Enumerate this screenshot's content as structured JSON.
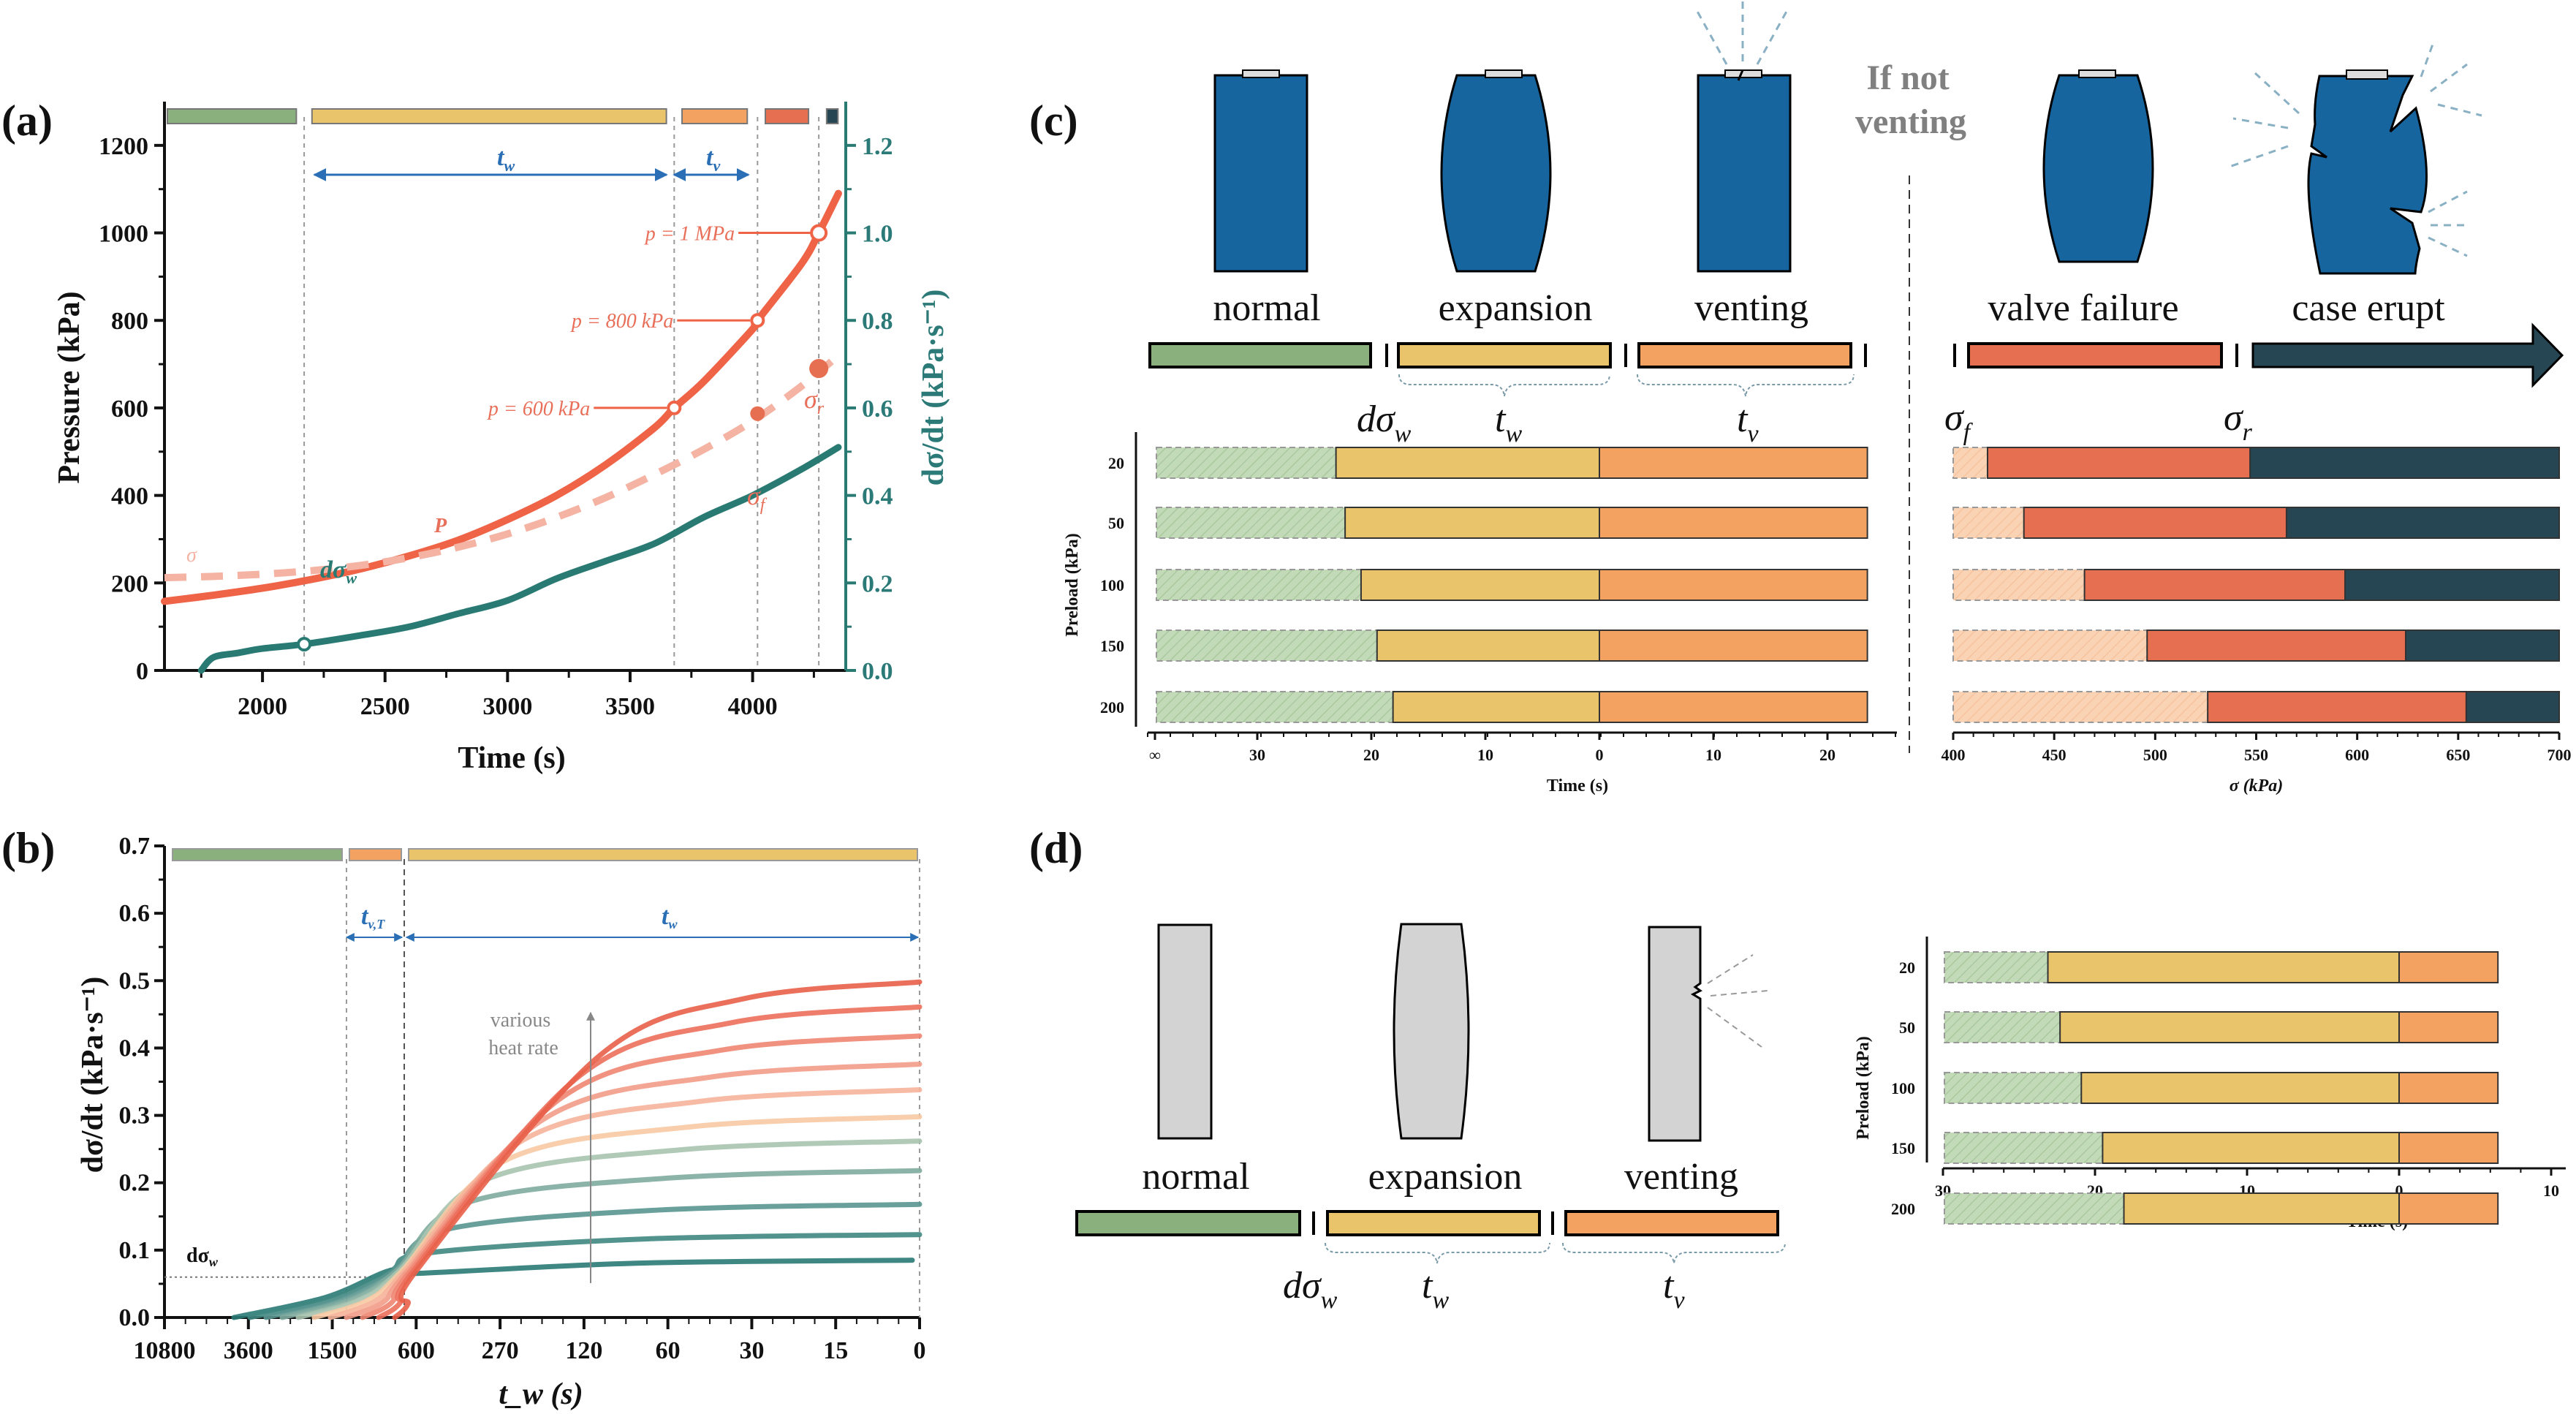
{
  "figure": {
    "panels": [
      "(a)",
      "(b)",
      "(c)",
      "(d)"
    ]
  },
  "colors": {
    "normal": "#8ab17d",
    "expansion": "#e9c46a",
    "venting": "#f4a261",
    "valve_failure": "#e76f51",
    "case_erupt": "#264653",
    "pressure": "#ef6347",
    "sigma": "#f4b3a3",
    "dsigma": "#2a7a74",
    "arrow_blue": "#2a6fb5",
    "battery_blue": "#17659f",
    "battery_gray": "#d3d3d3"
  },
  "panel_c": {
    "stages": [
      "normal",
      "expansion",
      "venting",
      "valve failure",
      "case erupt"
    ],
    "if_not_venting": [
      "If not",
      "venting"
    ],
    "symbols": {
      "dsigma_w": "dσ",
      "dsigma_w_sub": "w",
      "t_w": "t",
      "t_w_sub": "w",
      "t_v": "t",
      "t_v_sub": "v",
      "sigma_f": "σ",
      "sigma_f_sub": "f",
      "sigma_r": "σ",
      "sigma_r_sub": "r"
    }
  },
  "panel_d": {
    "stages": [
      "normal",
      "expansion",
      "venting"
    ],
    "symbols": {
      "dsigma_w": "dσ",
      "dsigma_w_sub": "w",
      "t_w": "t",
      "t_w_sub": "w",
      "t_v": "t",
      "t_v_sub": "v"
    }
  },
  "chart_data": [
    {
      "id": "a",
      "type": "line",
      "title": "",
      "xlabel": "Time (s)",
      "ylabel": "Pressure (kPa)",
      "ylabel_right": "dσ/dt (kPa·s⁻¹)",
      "xlim": [
        1600,
        4380
      ],
      "ylim": [
        0,
        1300
      ],
      "ylim_right": [
        0,
        1.3
      ],
      "xticks": [
        2000,
        2500,
        3000,
        3500,
        4000
      ],
      "yticks": [
        0,
        200,
        400,
        600,
        800,
        1000,
        1200
      ],
      "yticks_right": [
        "0.0",
        "0.2",
        "0.4",
        "0.6",
        "0.8",
        "1.0",
        "1.2"
      ],
      "series": [
        {
          "name": "P",
          "axis": "left",
          "style": "solid",
          "x": [
            1600,
            1800,
            2000,
            2200,
            2400,
            2600,
            2800,
            3000,
            3200,
            3400,
            3600,
            3680,
            3800,
            4000,
            4020,
            4200,
            4270,
            4350
          ],
          "y": [
            158,
            172,
            188,
            208,
            232,
            262,
            298,
            345,
            400,
            470,
            555,
            600,
            660,
            780,
            800,
            930,
            1000,
            1090
          ]
        },
        {
          "name": "σ",
          "axis": "left",
          "style": "dashed",
          "x": [
            1600,
            1800,
            2000,
            2200,
            2400,
            2600,
            2800,
            3000,
            3200,
            3400,
            3600,
            3800,
            4000,
            4200,
            4350
          ],
          "y": [
            212,
            215,
            220,
            228,
            240,
            258,
            282,
            312,
            350,
            395,
            448,
            505,
            570,
            650,
            720
          ]
        },
        {
          "name": "dσ/dt",
          "axis": "right",
          "style": "solid",
          "x": [
            1750,
            1800,
            1900,
            2000,
            2170,
            2400,
            2600,
            2800,
            3000,
            3200,
            3400,
            3600,
            3800,
            4000,
            4200,
            4350
          ],
          "y": [
            0.0,
            0.03,
            0.04,
            0.05,
            0.06,
            0.08,
            0.1,
            0.13,
            0.16,
            0.21,
            0.25,
            0.29,
            0.35,
            0.4,
            0.46,
            0.51
          ]
        }
      ],
      "markers": [
        {
          "label": "p = 600 kPa",
          "x": 3680,
          "y": 600,
          "type": "open"
        },
        {
          "label": "p = 800 kPa",
          "x": 4020,
          "y": 800,
          "type": "open"
        },
        {
          "label": "p = 1 MPa",
          "x": 4270,
          "y": 1000,
          "type": "open"
        },
        {
          "label": "σf",
          "x": 4020,
          "y": 587,
          "type": "filled"
        },
        {
          "label": "σr",
          "x": 4270,
          "y": 690,
          "type": "filled"
        },
        {
          "label": "dσw",
          "x": 2170,
          "y": 0.06,
          "type": "open",
          "axis": "right"
        }
      ],
      "annotations": {
        "P": "P",
        "sigma": "σ",
        "dsigma_w": "dσ",
        "dsigma_w_sub": "w",
        "t_w": "t",
        "t_w_sub": "w",
        "t_v": "t",
        "t_v_sub": "v",
        "sigma_f": "σ",
        "sigma_f_sub": "f",
        "sigma_r": "σ",
        "sigma_r_sub": "r"
      },
      "phase_boundaries": [
        2170,
        3680,
        4020,
        4270
      ],
      "phases": [
        {
          "name": "normal",
          "from": 1600,
          "to": 2150
        },
        {
          "name": "expansion",
          "from": 2190,
          "to": 3660
        },
        {
          "name": "venting",
          "from": 3700,
          "to": 3990
        },
        {
          "name": "valve failure",
          "from": 4040,
          "to": 4240
        },
        {
          "name": "case erupt",
          "from": 4290,
          "to": 4360
        }
      ]
    },
    {
      "id": "b",
      "type": "line",
      "title": "",
      "xlabel": "t_w (s)",
      "ylabel": "dσ/dt (kPa·s⁻¹)",
      "xticks": [
        "10800",
        "3600",
        "1500",
        "600",
        "270",
        "120",
        "60",
        "30",
        "15",
        "0"
      ],
      "ylim": [
        0,
        0.7
      ],
      "yticks": [
        "0.0",
        "0.1",
        "0.2",
        "0.3",
        "0.4",
        "0.5",
        "0.6",
        "0.7"
      ],
      "threshold": {
        "label": "dσ",
        "label_sub": "w",
        "value": 0.06
      },
      "annotation": [
        "various",
        "heat rate"
      ],
      "spans": {
        "t_vT": "t",
        "t_vT_sub": "v,T",
        "t_w": "t",
        "t_w_sub": "w"
      },
      "phases": [
        "normal",
        "venting",
        "expansion"
      ],
      "series_final_values": [
        0.085,
        0.123,
        0.168,
        0.218,
        0.262,
        0.298,
        0.338,
        0.376,
        0.418,
        0.461,
        0.498
      ],
      "series_colors": [
        "#2a7a74",
        "#3f8781",
        "#5a9690",
        "#7fab9f",
        "#a9c4b0",
        "#f7c9a3",
        "#f6b39a",
        "#f29c88",
        "#ef8673",
        "#ec6f5c",
        "#e8604a"
      ]
    },
    {
      "id": "c-left",
      "type": "bar",
      "orientation": "horizontal",
      "stacked": true,
      "xlabel": "Time (s)",
      "ylabel": "Preload (kPa)",
      "categories": [
        "20",
        "50",
        "100",
        "150",
        "200"
      ],
      "xticks": [
        "∞",
        "30",
        "20",
        "10",
        "0",
        "10",
        "20"
      ],
      "series": [
        {
          "name": "normal (hatched, to ∞)",
          "values": [
            "∞",
            "∞",
            "∞",
            "∞",
            "∞"
          ]
        },
        {
          "name": "t_w (expansion)",
          "values": [
            23.1,
            22.3,
            20.9,
            19.5,
            18.1
          ]
        },
        {
          "name": "t_v (venting)",
          "values": [
            23.5,
            23.5,
            23.5,
            23.5,
            23.5
          ]
        }
      ]
    },
    {
      "id": "c-right",
      "type": "bar",
      "orientation": "horizontal",
      "stacked": true,
      "xlabel": "σ (kPa)",
      "categories": [
        "20",
        "50",
        "100",
        "150",
        "200"
      ],
      "xlim": [
        400,
        700
      ],
      "xticks": [
        "400",
        "450",
        "500",
        "550",
        "600",
        "650",
        "700"
      ],
      "series": [
        {
          "name": "σ_f",
          "values": [
            417,
            435,
            465,
            496,
            526
          ]
        },
        {
          "name": "σ_r",
          "values": [
            547,
            565,
            594,
            624,
            654
          ]
        }
      ]
    },
    {
      "id": "d",
      "type": "bar",
      "orientation": "horizontal",
      "stacked": true,
      "xlabel": "Time (s)",
      "ylabel": "Preload (kPa)",
      "categories": [
        "20",
        "50",
        "100",
        "150",
        "200"
      ],
      "xticks": [
        "30",
        "20",
        "10",
        "0",
        "10"
      ],
      "series": [
        {
          "name": "t_w (expansion)",
          "values": [
            23.1,
            22.3,
            20.9,
            19.5,
            18.1
          ]
        },
        {
          "name": "t_v (venting)",
          "values": [
            6.5,
            6.5,
            6.5,
            6.5,
            6.5
          ]
        }
      ]
    }
  ]
}
